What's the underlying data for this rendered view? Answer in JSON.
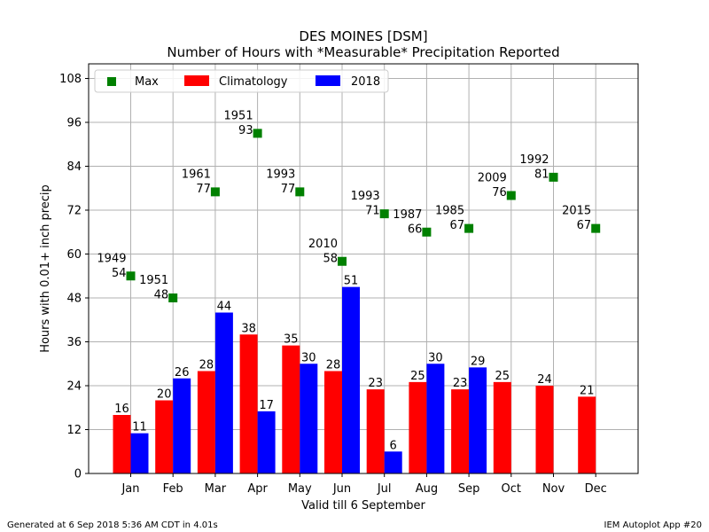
{
  "chart_data": {
    "type": "bar",
    "title": "DES MOINES [DSM]",
    "subtitle": "Number of Hours with *Measurable* Precipitation Reported",
    "xlabel": "Valid till 6 September",
    "ylabel": "Hours with 0.01+ inch precip",
    "ylim": [
      0,
      112
    ],
    "yticks": [
      0,
      12,
      24,
      36,
      48,
      60,
      72,
      84,
      96,
      108
    ],
    "grid": true,
    "legend_position": "top-left",
    "categories": [
      "Jan",
      "Feb",
      "Mar",
      "Apr",
      "May",
      "Jun",
      "Jul",
      "Aug",
      "Sep",
      "Oct",
      "Nov",
      "Dec"
    ],
    "series": [
      {
        "name": "Climatology",
        "color": "#ff0000",
        "values": [
          16,
          20,
          28,
          38,
          35,
          28,
          23,
          25,
          23,
          25,
          24,
          21
        ]
      },
      {
        "name": "2018",
        "color": "#0000ff",
        "values": [
          11,
          26,
          44,
          17,
          30,
          51,
          6,
          30,
          29,
          null,
          null,
          null
        ]
      }
    ],
    "max_series": {
      "name": "Max",
      "color": "#008000",
      "values": [
        54,
        48,
        77,
        93,
        77,
        58,
        71,
        66,
        67,
        76,
        81,
        67
      ],
      "years": [
        "1949",
        "1951",
        "1961",
        "1951",
        "1993",
        "2010",
        "1993",
        "1987",
        "1985",
        "2009",
        "1992",
        "2015"
      ]
    }
  },
  "footer": {
    "left": "Generated at 6 Sep 2018 5:36 AM CDT in 4.01s",
    "right": "IEM Autoplot App #20"
  }
}
